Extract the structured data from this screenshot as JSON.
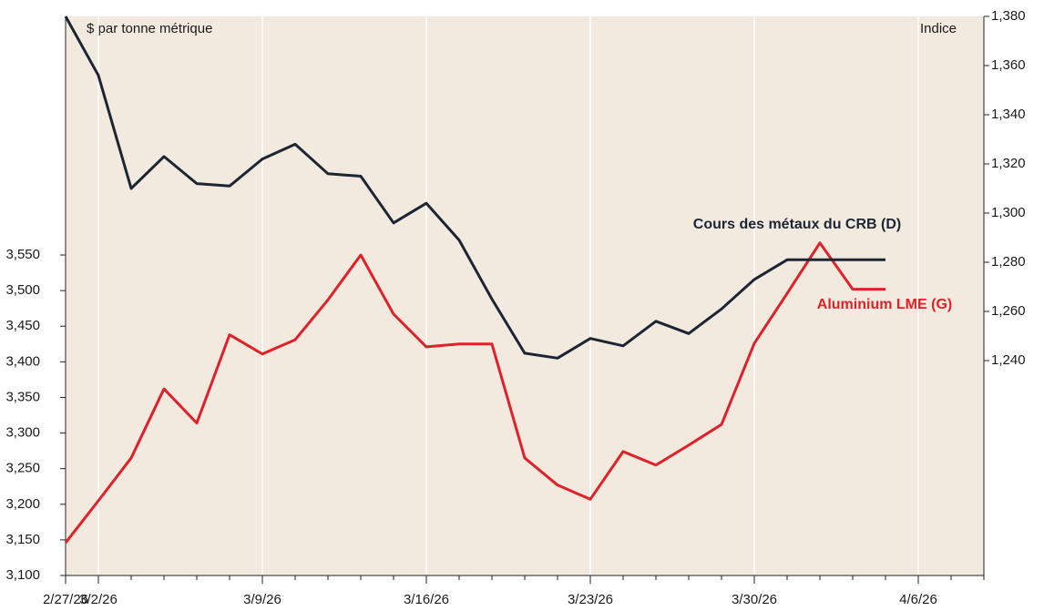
{
  "chart_data": {
    "type": "line",
    "ylabel": "$ par tonne métrique",
    "y2label": "Indice",
    "categories": [
      "2/27/26",
      "3/2/26",
      null,
      null,
      null,
      null,
      "3/9/26",
      null,
      null,
      null,
      null,
      "3/16/26",
      null,
      null,
      null,
      null,
      "3/23/26",
      null,
      null,
      null,
      null,
      "3/30/26",
      null,
      null,
      null,
      null,
      "4/6/26",
      null,
      null
    ],
    "series": [
      {
        "name": "Aluminium LME (G)",
        "color": "#e0202a",
        "axis": "y",
        "values": [
          3146,
          3205,
          3265,
          3362,
          3314,
          3438,
          3411,
          3431,
          3487,
          3550,
          3467,
          3421,
          3425,
          3425,
          3265,
          3227,
          3207,
          3274,
          3255,
          3283,
          3312,
          3426,
          3496,
          3567,
          3502,
          3502,
          null,
          null,
          null
        ]
      },
      {
        "name": "Cours des métaux du CRB (D)",
        "color": "#1c2533",
        "axis": "y2",
        "values": [
          1380,
          1356,
          1310,
          1323,
          1312,
          1311,
          1322,
          1328,
          1316,
          1315,
          1296,
          1304,
          1289,
          1265,
          1243,
          1241,
          1249,
          1246,
          1256,
          1251,
          1261,
          1273,
          1281,
          1281,
          1281,
          1281,
          null,
          null,
          null
        ]
      }
    ],
    "ylim": [
      3100,
      3885
    ],
    "yticks": [
      {
        "value": 3100,
        "label": "3,100"
      },
      {
        "value": 3150,
        "label": "3,150"
      },
      {
        "value": 3200,
        "label": "3,200"
      },
      {
        "value": 3250,
        "label": "3,250"
      },
      {
        "value": 3300,
        "label": "3,300"
      },
      {
        "value": 3350,
        "label": "3,350"
      },
      {
        "value": 3400,
        "label": "3,400"
      },
      {
        "value": 3450,
        "label": "3,450"
      },
      {
        "value": 3500,
        "label": "3,500"
      },
      {
        "value": 3550,
        "label": "3,550"
      }
    ],
    "y2lim": [
      1152.6,
      1380
    ],
    "y2ticks": [
      {
        "value": 1240,
        "label": "1,240"
      },
      {
        "value": 1260,
        "label": "1,260"
      },
      {
        "value": 1280,
        "label": "1,280"
      },
      {
        "value": 1300,
        "label": "1,300"
      },
      {
        "value": 1320,
        "label": "1,320"
      },
      {
        "value": 1340,
        "label": "1,340"
      },
      {
        "value": 1360,
        "label": "1,360"
      },
      {
        "value": 1380,
        "label": "1,380"
      }
    ],
    "grid": true
  }
}
